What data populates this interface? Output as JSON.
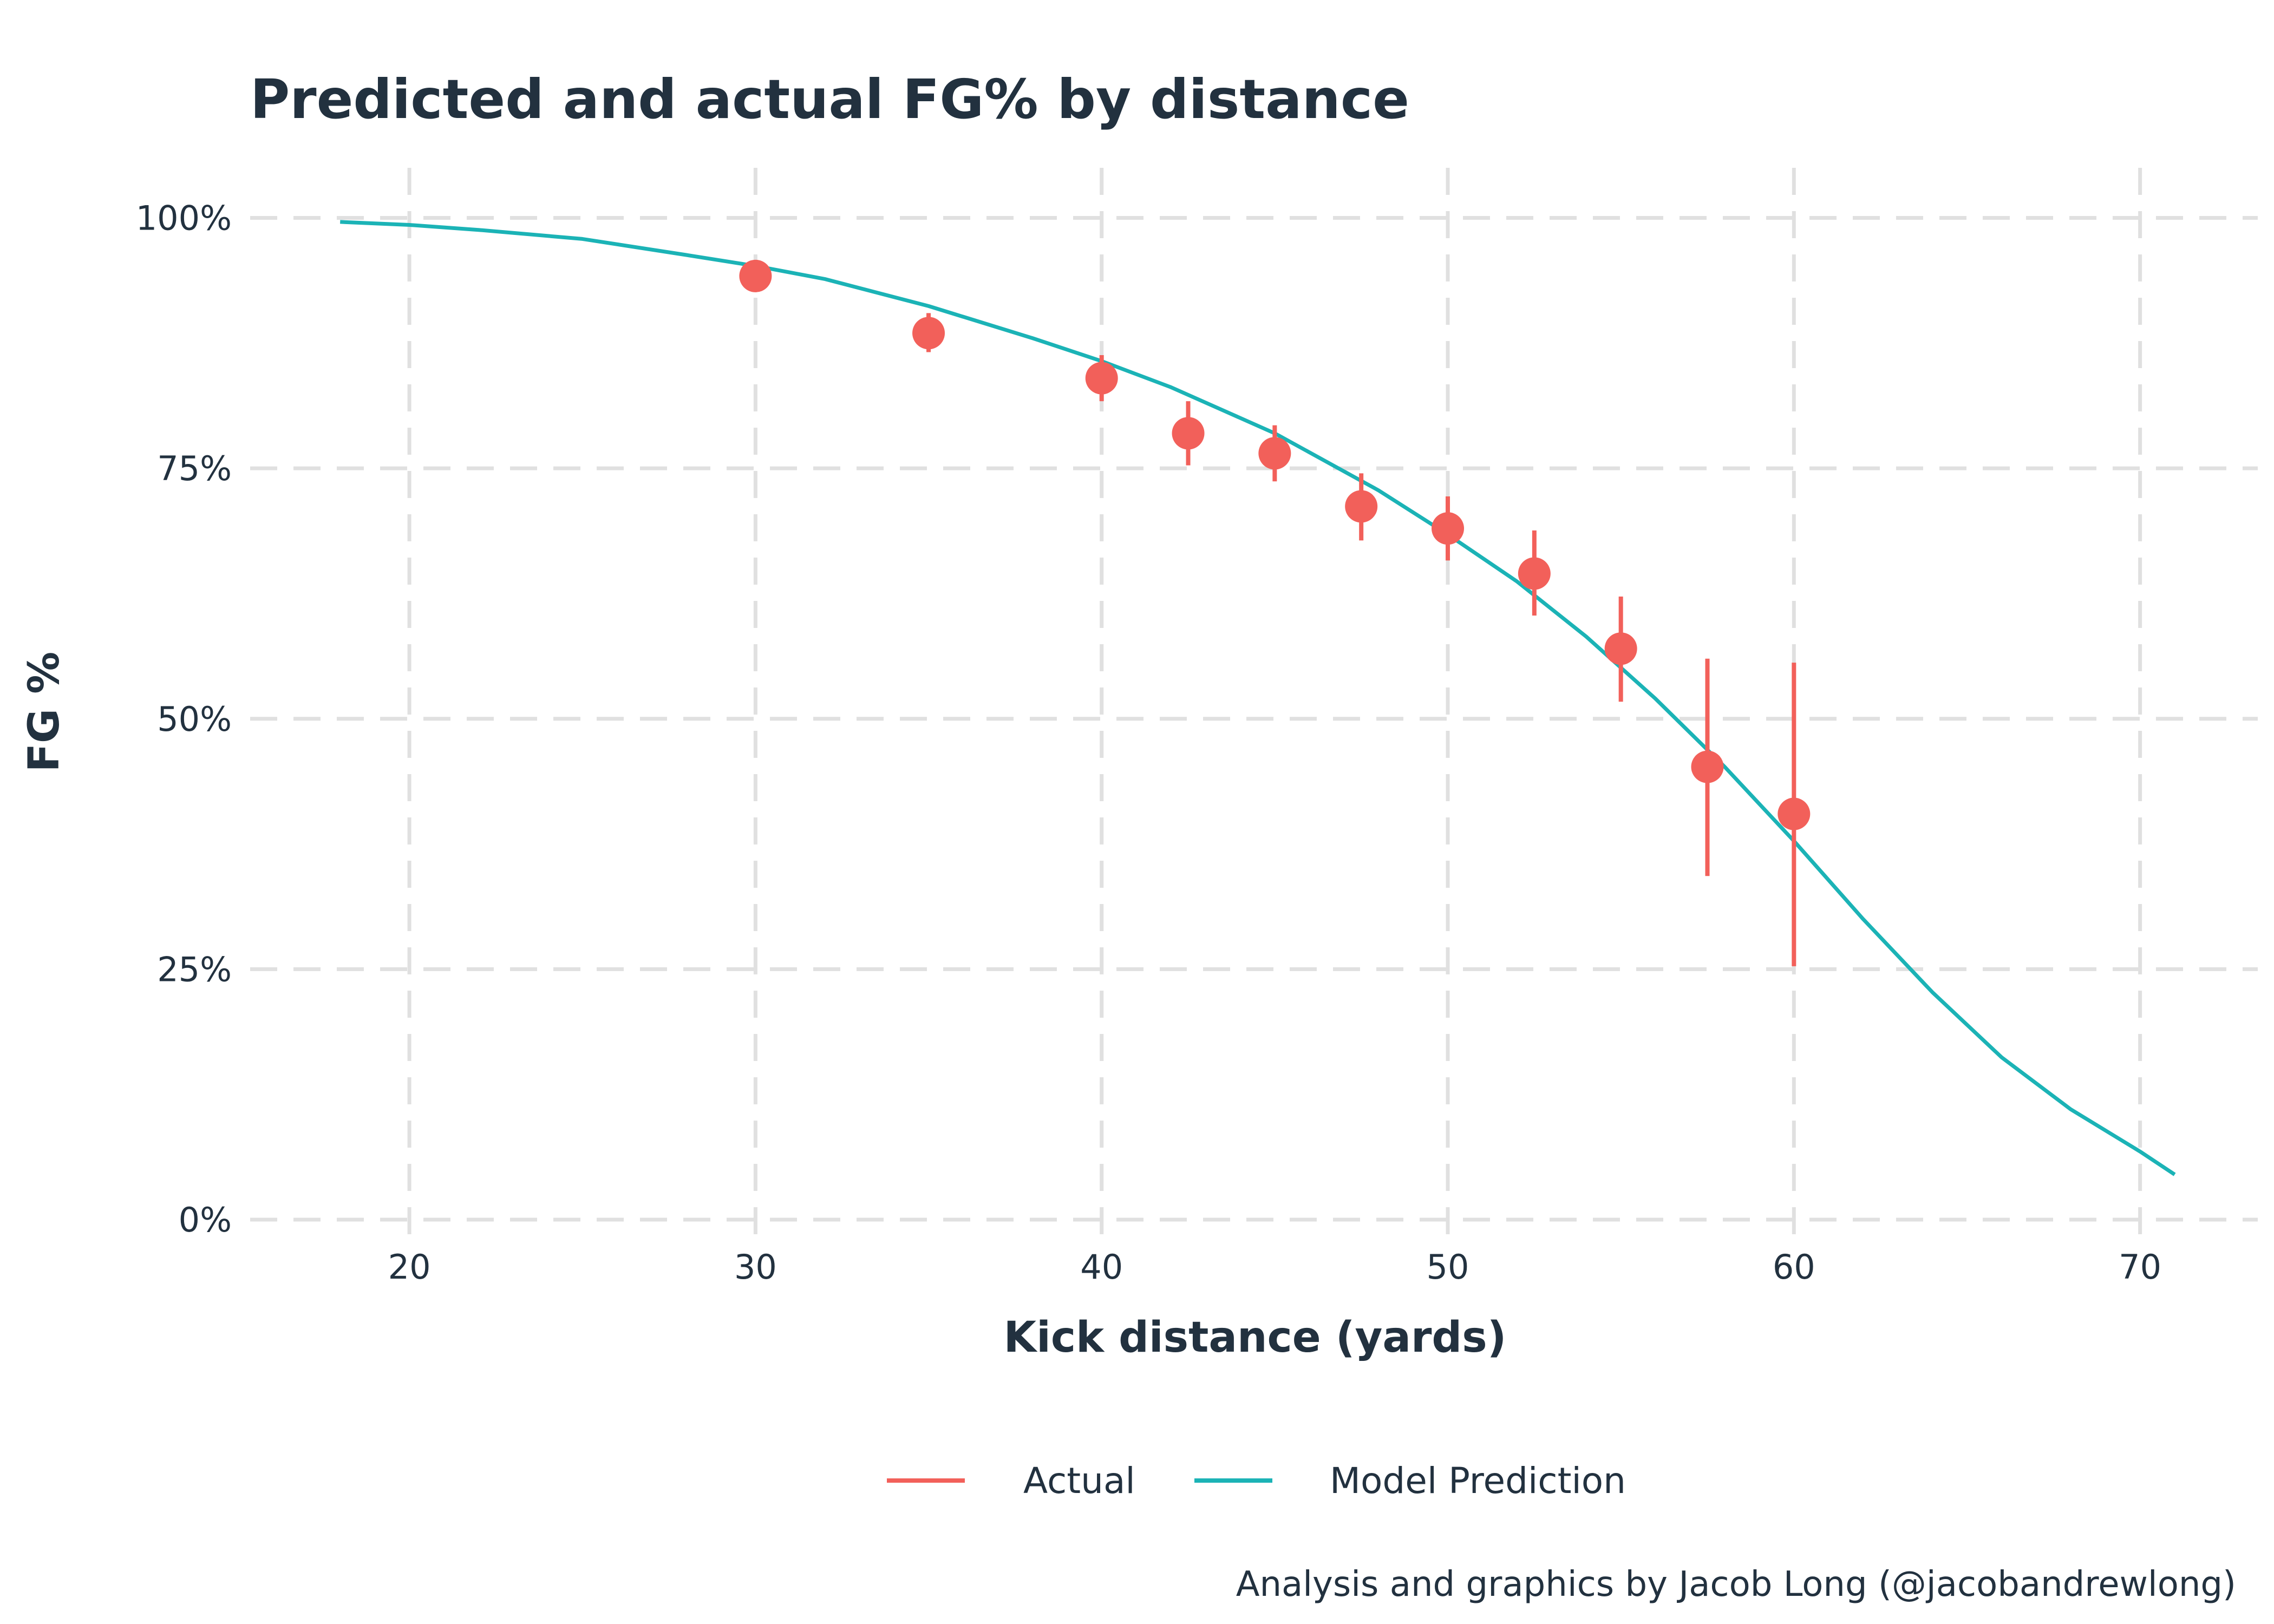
{
  "chart_data": {
    "type": "line",
    "title": "Predicted and actual FG% by distance",
    "xlabel": "Kick distance (yards)",
    "ylabel": "FG %",
    "caption": "Analysis and graphics by Jacob Long (@jacobandrewlong)",
    "xlim": [
      15.4,
      73.4
    ],
    "ylim": [
      -0.02,
      1.05
    ],
    "x_ticks": [
      {
        "value": 20,
        "label": "20"
      },
      {
        "value": 30,
        "label": "30"
      },
      {
        "value": 40,
        "label": "40"
      },
      {
        "value": 50,
        "label": "50"
      },
      {
        "value": 60,
        "label": "60"
      },
      {
        "value": 70,
        "label": "70"
      }
    ],
    "y_ticks": [
      {
        "value": 0,
        "label": "0%"
      },
      {
        "value": 0.25,
        "label": "25%"
      },
      {
        "value": 0.5,
        "label": "50%"
      },
      {
        "value": 0.75,
        "label": "75%"
      },
      {
        "value": 1,
        "label": "100%"
      }
    ],
    "grid": true,
    "legend_position": "bottom",
    "series": [
      {
        "name": "Actual",
        "kind": "point-errorbar",
        "color": "#f2605a",
        "points": [
          {
            "x": 30,
            "y": 0.942,
            "lo": 0.935,
            "hi": 0.948
          },
          {
            "x": 35,
            "y": 0.885,
            "lo": 0.866,
            "hi": 0.905
          },
          {
            "x": 40,
            "y": 0.84,
            "lo": 0.817,
            "hi": 0.863
          },
          {
            "x": 42.5,
            "y": 0.785,
            "lo": 0.753,
            "hi": 0.817
          },
          {
            "x": 45,
            "y": 0.765,
            "lo": 0.737,
            "hi": 0.793
          },
          {
            "x": 47.5,
            "y": 0.712,
            "lo": 0.678,
            "hi": 0.745
          },
          {
            "x": 50,
            "y": 0.69,
            "lo": 0.658,
            "hi": 0.722
          },
          {
            "x": 52.5,
            "y": 0.645,
            "lo": 0.603,
            "hi": 0.688
          },
          {
            "x": 55,
            "y": 0.57,
            "lo": 0.517,
            "hi": 0.622
          },
          {
            "x": 57.5,
            "y": 0.452,
            "lo": 0.343,
            "hi": 0.56
          },
          {
            "x": 60,
            "y": 0.405,
            "lo": 0.253,
            "hi": 0.556
          }
        ]
      },
      {
        "name": "Model Prediction",
        "kind": "line",
        "color": "#1bb3b6",
        "points": [
          {
            "x": 18,
            "y": 0.996
          },
          {
            "x": 20,
            "y": 0.993
          },
          {
            "x": 22,
            "y": 0.988
          },
          {
            "x": 25,
            "y": 0.979
          },
          {
            "x": 28,
            "y": 0.963
          },
          {
            "x": 30,
            "y": 0.952
          },
          {
            "x": 32,
            "y": 0.939
          },
          {
            "x": 35,
            "y": 0.912
          },
          {
            "x": 38,
            "y": 0.88
          },
          {
            "x": 40,
            "y": 0.857
          },
          {
            "x": 42,
            "y": 0.831
          },
          {
            "x": 45,
            "y": 0.785
          },
          {
            "x": 48,
            "y": 0.728
          },
          {
            "x": 50,
            "y": 0.684
          },
          {
            "x": 52,
            "y": 0.637
          },
          {
            "x": 54,
            "y": 0.582
          },
          {
            "x": 56,
            "y": 0.52
          },
          {
            "x": 58,
            "y": 0.452
          },
          {
            "x": 60,
            "y": 0.378
          },
          {
            "x": 62,
            "y": 0.3
          },
          {
            "x": 64,
            "y": 0.227
          },
          {
            "x": 66,
            "y": 0.162
          },
          {
            "x": 68,
            "y": 0.11
          },
          {
            "x": 70,
            "y": 0.068
          },
          {
            "x": 71,
            "y": 0.045
          }
        ]
      }
    ]
  }
}
